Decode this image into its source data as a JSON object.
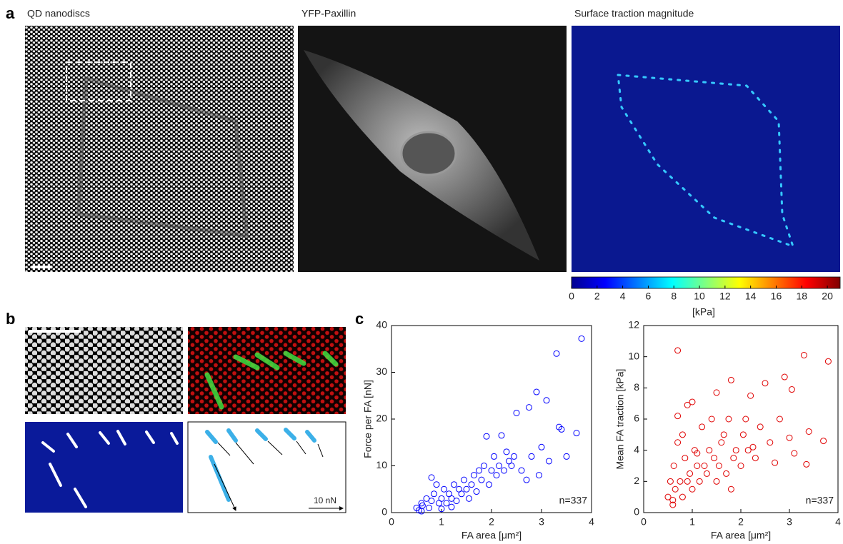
{
  "panel_labels": [
    "a",
    "b",
    "c"
  ],
  "image_titles": [
    "QD nanodiscs",
    "YFP-Paxillin",
    "Surface traction magnitude"
  ],
  "colorbar": {
    "lim": [
      0,
      21
    ],
    "ticks": [
      0,
      2,
      4,
      6,
      8,
      10,
      12,
      14,
      16,
      18,
      20
    ],
    "label": "[kPa]"
  },
  "scale_arrow_label": "10 nN",
  "chart_data": [
    {
      "type": "scatter",
      "xlabel": "FA area [μm²]",
      "ylabel": "Force per FA [nN]",
      "annotation": "n=337",
      "color": "#0000ff",
      "xlim": [
        0,
        4
      ],
      "ylim": [
        0,
        40
      ],
      "xticks": [
        0,
        1,
        2,
        3,
        4
      ],
      "yticks": [
        0,
        10,
        20,
        30,
        40
      ],
      "x": [
        0.5,
        0.55,
        0.6,
        0.62,
        0.7,
        0.75,
        0.8,
        0.85,
        0.9,
        0.95,
        1.0,
        1.05,
        1.1,
        1.15,
        1.2,
        1.25,
        1.3,
        1.35,
        1.4,
        1.45,
        1.5,
        1.55,
        1.6,
        1.65,
        1.7,
        1.75,
        1.8,
        1.85,
        1.9,
        1.95,
        2.0,
        2.05,
        2.1,
        2.15,
        2.2,
        2.25,
        2.3,
        2.35,
        2.4,
        2.45,
        2.5,
        2.6,
        2.7,
        2.75,
        2.8,
        2.9,
        2.95,
        3.0,
        3.1,
        3.15,
        3.3,
        3.35,
        3.4,
        3.5,
        3.7,
        3.8,
        0.8,
        1.0,
        0.6,
        1.2
      ],
      "values": [
        1,
        0.5,
        2,
        1.5,
        3,
        1,
        2.5,
        4,
        6,
        2,
        3,
        5,
        2,
        4,
        3,
        6,
        2.5,
        5,
        4,
        7,
        5,
        3,
        6,
        8,
        4.5,
        9,
        7,
        10,
        16.3,
        6,
        9,
        12,
        8,
        10,
        16.5,
        9,
        13,
        11,
        10,
        12,
        21.3,
        9,
        7,
        22.5,
        12,
        25.8,
        8,
        14,
        24,
        11,
        34,
        18.3,
        17.8,
        12,
        17,
        37.2,
        7.5,
        0.8,
        0.3,
        1.2
      ]
    },
    {
      "type": "scatter",
      "xlabel": "FA area [μm²]",
      "ylabel": "Mean FA traction [kPa]",
      "annotation": "n=337",
      "color": "#e00000",
      "xlim": [
        0,
        4
      ],
      "ylim": [
        0,
        12
      ],
      "xticks": [
        0,
        1,
        2,
        3,
        4
      ],
      "yticks": [
        0,
        2,
        4,
        6,
        8,
        10,
        12
      ],
      "x": [
        0.5,
        0.55,
        0.6,
        0.62,
        0.65,
        0.7,
        0.7,
        0.75,
        0.8,
        0.85,
        0.9,
        0.95,
        1.0,
        1.0,
        1.05,
        1.1,
        1.15,
        1.2,
        1.25,
        1.3,
        1.35,
        1.4,
        1.45,
        1.5,
        1.55,
        1.6,
        1.65,
        1.7,
        1.75,
        1.8,
        1.85,
        1.9,
        2.0,
        2.05,
        2.1,
        2.2,
        2.25,
        2.3,
        2.4,
        2.5,
        2.6,
        2.7,
        2.8,
        2.9,
        3.0,
        3.05,
        3.1,
        3.3,
        3.35,
        3.4,
        3.7,
        3.8,
        0.6,
        0.8,
        0.9,
        1.1,
        1.5,
        0.7,
        1.8,
        2.15
      ],
      "values": [
        1,
        2,
        0.5,
        3,
        1.5,
        10.4,
        4.5,
        2,
        1,
        3.5,
        6.9,
        2.5,
        7.1,
        1.5,
        4,
        3,
        2,
        5.5,
        3,
        2.5,
        4,
        6,
        3.5,
        7.7,
        3,
        4.5,
        5,
        2.5,
        6,
        8.5,
        3.5,
        4,
        3,
        5,
        6,
        7.5,
        4.2,
        3.5,
        5.5,
        8.3,
        4.5,
        3.2,
        6,
        8.7,
        4.8,
        7.9,
        3.8,
        10.1,
        3.1,
        5.2,
        4.6,
        9.7,
        0.8,
        5,
        2,
        3.8,
        2,
        6.2,
        1.5,
        4
      ]
    }
  ]
}
